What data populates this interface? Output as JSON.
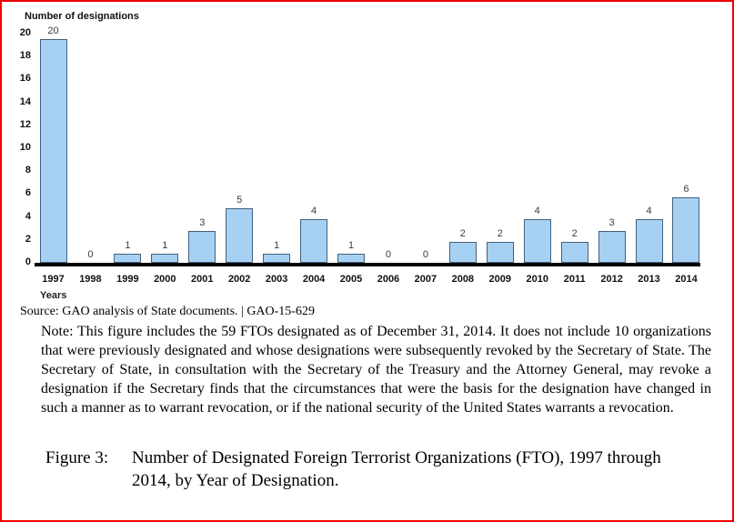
{
  "page": {
    "border_color": "#ee0000",
    "background": "#ffffff"
  },
  "chart_data": {
    "type": "bar",
    "title": "Number of designations",
    "xlabel": "Years",
    "ylabel": "Number of designations",
    "categories": [
      "1997",
      "1998",
      "1999",
      "2000",
      "2001",
      "2002",
      "2003",
      "2004",
      "2005",
      "2006",
      "2007",
      "2008",
      "2009",
      "2010",
      "2011",
      "2012",
      "2013",
      "2014"
    ],
    "values": [
      20,
      0,
      1,
      1,
      3,
      5,
      1,
      4,
      1,
      0,
      0,
      2,
      2,
      4,
      2,
      3,
      4,
      6
    ],
    "ylim": [
      0,
      20
    ],
    "ytick_step": 2,
    "grid": false,
    "legend_position": "none",
    "data_labels": true,
    "bar_fill": "#a7d1f3",
    "bar_border": "#42607c",
    "axis_color": "#000000"
  },
  "source_line": "Source: GAO analysis of State documents. | GAO-15-629",
  "note": "Note: This figure includes the 59 FTOs designated as of December 31, 2014. It does not include 10 organizations that were previously designated and whose designations were subsequently revoked by the Secretary of State. The Secretary of State, in consultation with the Secretary of the Treasury and the Attorney General, may revoke a designation if the Secretary finds that the circumstances that were the basis for the designation have changed in such a manner as to warrant revocation, or if the national security of the United States warrants a revocation.",
  "caption": {
    "label": "Figure 3:",
    "text": "Number of Designated Foreign Terrorist Organizations (FTO), 1997 through 2014, by Year of Designation."
  }
}
